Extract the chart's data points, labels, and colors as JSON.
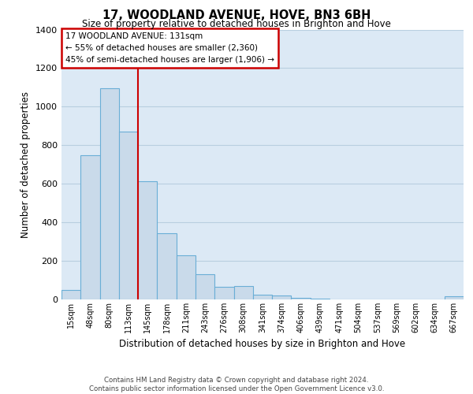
{
  "title": "17, WOODLAND AVENUE, HOVE, BN3 6BH",
  "subtitle": "Size of property relative to detached houses in Brighton and Hove",
  "xlabel": "Distribution of detached houses by size in Brighton and Hove",
  "ylabel": "Number of detached properties",
  "bar_labels": [
    "15sqm",
    "48sqm",
    "80sqm",
    "113sqm",
    "145sqm",
    "178sqm",
    "211sqm",
    "243sqm",
    "276sqm",
    "308sqm",
    "341sqm",
    "374sqm",
    "406sqm",
    "439sqm",
    "471sqm",
    "504sqm",
    "537sqm",
    "569sqm",
    "602sqm",
    "634sqm",
    "667sqm"
  ],
  "bar_values": [
    50,
    750,
    1095,
    870,
    615,
    345,
    228,
    130,
    65,
    70,
    25,
    20,
    10,
    5,
    2,
    1,
    0,
    0,
    0,
    0,
    15
  ],
  "bar_color": "#c9daea",
  "bar_edge_color": "#6aaed6",
  "vline_x": 3.5,
  "vline_color": "#cc0000",
  "ylim": [
    0,
    1400
  ],
  "yticks": [
    0,
    200,
    400,
    600,
    800,
    1000,
    1200,
    1400
  ],
  "annotation_title": "17 WOODLAND AVENUE: 131sqm",
  "annotation_line1": "← 55% of detached houses are smaller (2,360)",
  "annotation_line2": "45% of semi-detached houses are larger (1,906) →",
  "annotation_box_color": "#ffffff",
  "annotation_box_edge": "#cc0000",
  "footer_line1": "Contains HM Land Registry data © Crown copyright and database right 2024.",
  "footer_line2": "Contains public sector information licensed under the Open Government Licence v3.0.",
  "background_color": "#ffffff",
  "plot_bg_color": "#dce9f5",
  "grid_color": "#b8cfe0"
}
